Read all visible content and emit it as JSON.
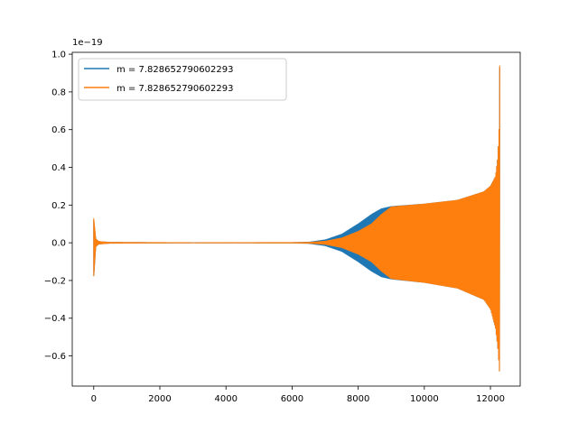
{
  "chart_data": {
    "type": "line",
    "title": "",
    "xlabel": "",
    "ylabel": "",
    "offset_label": "1e−19",
    "xlim": [
      -650,
      12900
    ],
    "ylim": [
      -0.76,
      1.01
    ],
    "x_ticks": [
      0,
      2000,
      4000,
      6000,
      8000,
      10000,
      12000
    ],
    "x_tick_labels": [
      "0",
      "2000",
      "4000",
      "6000",
      "8000",
      "10000",
      "12000"
    ],
    "y_ticks": [
      -0.6,
      -0.4,
      -0.2,
      0.0,
      0.2,
      0.4,
      0.6,
      0.8,
      1.0
    ],
    "y_tick_labels": [
      "−0.6",
      "−0.4",
      "−0.2",
      "0.0",
      "0.2",
      "0.4",
      "0.6",
      "0.8",
      "1.0"
    ],
    "grid": false,
    "legend_position": "top-left",
    "series": [
      {
        "name": "m = 7.828652790602293",
        "color": "#1f77b4",
        "style": "oscillating envelope",
        "upper_envelope": [
          [
            0,
            0.12
          ],
          [
            60,
            0.02
          ],
          [
            150,
            0.006
          ],
          [
            500,
            0.002
          ],
          [
            3000,
            0.0
          ],
          [
            6000,
            0.001
          ],
          [
            6500,
            0.003
          ],
          [
            7000,
            0.015
          ],
          [
            7500,
            0.045
          ],
          [
            8000,
            0.1
          ],
          [
            8400,
            0.15
          ],
          [
            8700,
            0.18
          ],
          [
            9000,
            0.192
          ],
          [
            10000,
            0.205
          ],
          [
            11000,
            0.225
          ],
          [
            11800,
            0.27
          ],
          [
            12000,
            0.3
          ],
          [
            12150,
            0.35
          ],
          [
            12220,
            0.45
          ],
          [
            12260,
            0.6
          ],
          [
            12280,
            0.93
          ]
        ],
        "lower_envelope": [
          [
            0,
            -0.18
          ],
          [
            60,
            -0.02
          ],
          [
            150,
            -0.006
          ],
          [
            500,
            -0.002
          ],
          [
            3000,
            0.0
          ],
          [
            6000,
            -0.001
          ],
          [
            6500,
            -0.003
          ],
          [
            7000,
            -0.015
          ],
          [
            7500,
            -0.045
          ],
          [
            8000,
            -0.1
          ],
          [
            8400,
            -0.15
          ],
          [
            8700,
            -0.18
          ],
          [
            9000,
            -0.192
          ],
          [
            10000,
            -0.21
          ],
          [
            11000,
            -0.24
          ],
          [
            11800,
            -0.3
          ],
          [
            12000,
            -0.35
          ],
          [
            12150,
            -0.45
          ],
          [
            12220,
            -0.55
          ],
          [
            12260,
            -0.65
          ],
          [
            12280,
            -0.7
          ]
        ]
      },
      {
        "name": "m = 7.828652790602293",
        "color": "#ff7f0e",
        "style": "oscillating envelope",
        "upper_envelope": [
          [
            0,
            0.13
          ],
          [
            60,
            0.02
          ],
          [
            150,
            0.006
          ],
          [
            500,
            0.002
          ],
          [
            3000,
            0.0
          ],
          [
            6000,
            0.001
          ],
          [
            6500,
            0.002
          ],
          [
            7000,
            0.008
          ],
          [
            7500,
            0.025
          ],
          [
            8000,
            0.06
          ],
          [
            8400,
            0.1
          ],
          [
            8700,
            0.15
          ],
          [
            9000,
            0.19
          ],
          [
            10000,
            0.205
          ],
          [
            11000,
            0.225
          ],
          [
            11800,
            0.27
          ],
          [
            12000,
            0.3
          ],
          [
            12150,
            0.35
          ],
          [
            12220,
            0.45
          ],
          [
            12260,
            0.6
          ],
          [
            12280,
            0.94
          ]
        ],
        "lower_envelope": [
          [
            0,
            -0.18
          ],
          [
            60,
            -0.02
          ],
          [
            150,
            -0.006
          ],
          [
            500,
            -0.002
          ],
          [
            3000,
            0.0
          ],
          [
            6000,
            -0.001
          ],
          [
            6500,
            -0.002
          ],
          [
            7000,
            -0.008
          ],
          [
            7500,
            -0.025
          ],
          [
            8000,
            -0.06
          ],
          [
            8400,
            -0.1
          ],
          [
            8700,
            -0.15
          ],
          [
            9000,
            -0.19
          ],
          [
            10000,
            -0.21
          ],
          [
            11000,
            -0.24
          ],
          [
            11800,
            -0.3
          ],
          [
            12000,
            -0.35
          ],
          [
            12150,
            -0.45
          ],
          [
            12220,
            -0.55
          ],
          [
            12260,
            -0.65
          ],
          [
            12280,
            -0.7
          ]
        ]
      }
    ]
  }
}
